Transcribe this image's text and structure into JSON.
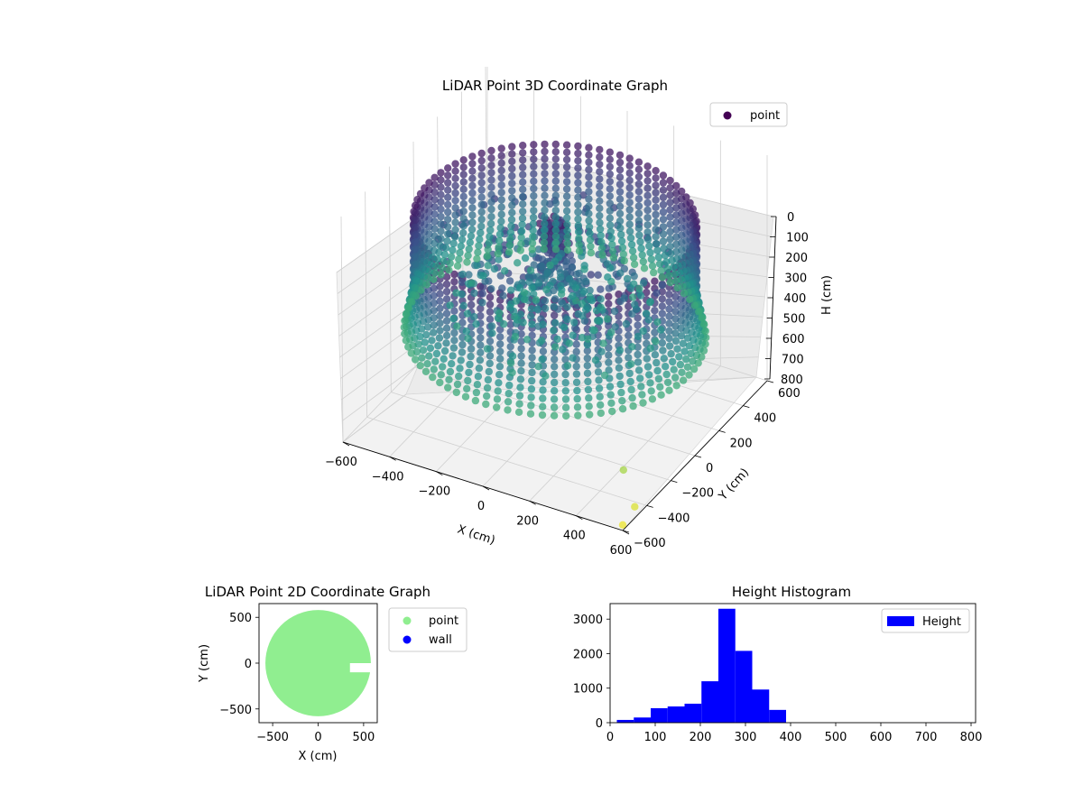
{
  "chart_data": [
    {
      "type": "scatter",
      "projection": "3d",
      "title": "LiDAR Point 3D Coordinate Graph",
      "xlabel": "X (cm)",
      "ylabel": "Y (cm)",
      "zlabel": "H (cm)",
      "xlim": [
        -600,
        600
      ],
      "ylim": [
        -600,
        600
      ],
      "zlim": [
        0,
        800
      ],
      "zaxis_inverted": true,
      "x_ticks": [
        "−600",
        "−400",
        "−200",
        "0",
        "200",
        "400",
        "600"
      ],
      "y_ticks": [
        "−600",
        "−400",
        "−200",
        "0",
        "200",
        "400",
        "600"
      ],
      "z_ticks": [
        "0",
        "100",
        "200",
        "300",
        "400",
        "500",
        "600",
        "700",
        "800"
      ],
      "colormap": "viridis",
      "color_by": "height",
      "grid": true,
      "legend": {
        "position": "top-right",
        "entries": [
          {
            "label": "point",
            "color": "#440154"
          }
        ]
      },
      "shape": "ring wall of radius ~550 cm scanned in vertical sweeps, plus interior clutter near center",
      "sample_points": [
        {
          "x": 0,
          "y": 0,
          "h": 150
        },
        {
          "x": 0,
          "y": 0,
          "h": 250
        },
        {
          "x": 550,
          "y": 0,
          "h": 300
        },
        {
          "x": 0,
          "y": 550,
          "h": 300
        },
        {
          "x": -550,
          "y": 0,
          "h": 300
        },
        {
          "x": 0,
          "y": -550,
          "h": 300
        },
        {
          "x": 600,
          "y": -600,
          "h": 780
        },
        {
          "x": 600,
          "y": -500,
          "h": 760
        },
        {
          "x": 500,
          "y": -400,
          "h": 700
        }
      ]
    },
    {
      "type": "scatter",
      "title": "LiDAR Point 2D Coordinate Graph",
      "xlabel": "X (cm)",
      "ylabel": "Y (cm)",
      "xlim": [
        -650,
        650
      ],
      "ylim": [
        -650,
        650
      ],
      "x_ticks": [
        "−500",
        "0",
        "500"
      ],
      "y_ticks": [
        "−500",
        "0",
        "500"
      ],
      "series": [
        {
          "name": "point",
          "color": "#90ee90",
          "region": "disc radius ~580 cm centered (0,0) with notch at x 350–650, y −100 to 0"
        },
        {
          "name": "wall",
          "color": "#0000ff",
          "points": []
        }
      ],
      "legend": {
        "position": "outside-right",
        "entries": [
          {
            "label": "point",
            "color": "#90ee90"
          },
          {
            "label": "wall",
            "color": "#0000ff"
          }
        ]
      }
    },
    {
      "type": "bar",
      "subtype": "histogram",
      "title": "Height Histogram",
      "xlim": [
        0,
        810
      ],
      "ylim": [
        0,
        3450
      ],
      "x_ticks": [
        "0",
        "100",
        "200",
        "300",
        "400",
        "500",
        "600",
        "700",
        "800"
      ],
      "y_ticks": [
        "0",
        "1000",
        "2000",
        "3000"
      ],
      "color": "#0000ff",
      "bin_edges": [
        15,
        52.5,
        90,
        127.5,
        165,
        202.5,
        240,
        277.5,
        315,
        352.5,
        390,
        427.5,
        465,
        502.5,
        540,
        577.5,
        615,
        652.5,
        690,
        727.5,
        765,
        802.5
      ],
      "values": [
        80,
        150,
        420,
        470,
        550,
        1200,
        3300,
        2080,
        960,
        370,
        0,
        0,
        0,
        0,
        0,
        0,
        0,
        0,
        0,
        5,
        3
      ],
      "legend": {
        "position": "top-right",
        "entries": [
          {
            "label": "Height",
            "color": "#0000ff"
          }
        ]
      }
    }
  ]
}
